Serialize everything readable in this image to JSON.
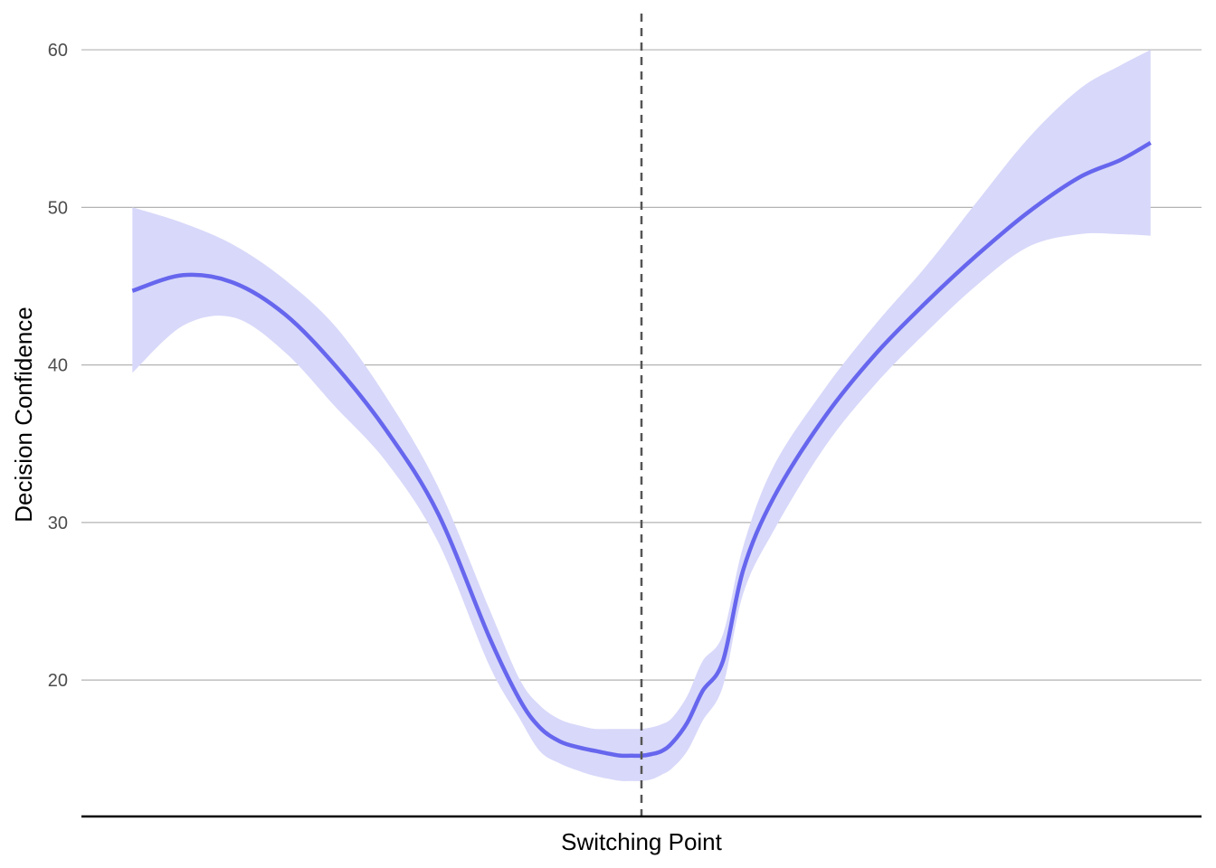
{
  "chart_data": {
    "type": "line",
    "title": "",
    "xlabel": "Switching Point",
    "ylabel": "Decision Confidence",
    "x_range": [
      -0.55,
      0.55
    ],
    "ylim": [
      11.4,
      62.3
    ],
    "y_ticks": [
      20,
      30,
      40,
      50,
      60
    ],
    "y_tick_labels": [
      "20",
      "30",
      "40",
      "50",
      "60"
    ],
    "grid": "horizontal",
    "reference_line": {
      "x": 0,
      "style": "dashed"
    },
    "colors": {
      "line": "#6666ee",
      "band": "#d8d8fa",
      "grid": "#b3b3b3",
      "reference": "#555555",
      "axis": "#000000"
    },
    "series": [
      {
        "x": [
          -0.5,
          -0.45,
          -0.4,
          -0.35,
          -0.3,
          -0.25,
          -0.2,
          -0.15,
          -0.12,
          -0.1,
          -0.08,
          -0.06,
          -0.045,
          -0.03,
          -0.02,
          -0.01,
          0.0,
          0.01,
          0.02,
          0.03,
          0.045,
          0.06,
          0.08,
          0.1,
          0.13,
          0.18,
          0.23,
          0.28,
          0.33,
          0.38,
          0.43,
          0.47,
          0.5
        ],
        "y": [
          44.7,
          45.7,
          45.2,
          43.2,
          39.9,
          35.8,
          30.6,
          22.8,
          18.8,
          17.0,
          16.1,
          15.7,
          15.5,
          15.3,
          15.2,
          15.2,
          15.2,
          15.3,
          15.5,
          16.0,
          17.3,
          19.3,
          21.2,
          27.0,
          31.6,
          36.7,
          40.7,
          44.0,
          47.0,
          49.7,
          51.9,
          53.0,
          54.1
        ],
        "ci_low": [
          39.5,
          42.5,
          43.0,
          40.8,
          37.3,
          33.8,
          28.8,
          21.0,
          17.6,
          15.5,
          14.7,
          14.2,
          13.9,
          13.7,
          13.6,
          13.6,
          13.6,
          13.7,
          14.0,
          14.4,
          15.5,
          17.4,
          19.6,
          25.5,
          29.5,
          34.8,
          38.8,
          42.1,
          45.1,
          47.5,
          48.3,
          48.3,
          48.2
        ],
        "ci_high": [
          50.0,
          49.0,
          47.6,
          45.4,
          42.4,
          37.9,
          32.3,
          24.6,
          20.1,
          18.4,
          17.5,
          17.1,
          16.9,
          16.9,
          16.9,
          16.9,
          16.9,
          17.0,
          17.2,
          17.6,
          19.0,
          21.2,
          22.9,
          28.5,
          33.6,
          38.5,
          42.6,
          46.3,
          50.4,
          54.4,
          57.5,
          59.0,
          60.0
        ]
      }
    ]
  }
}
